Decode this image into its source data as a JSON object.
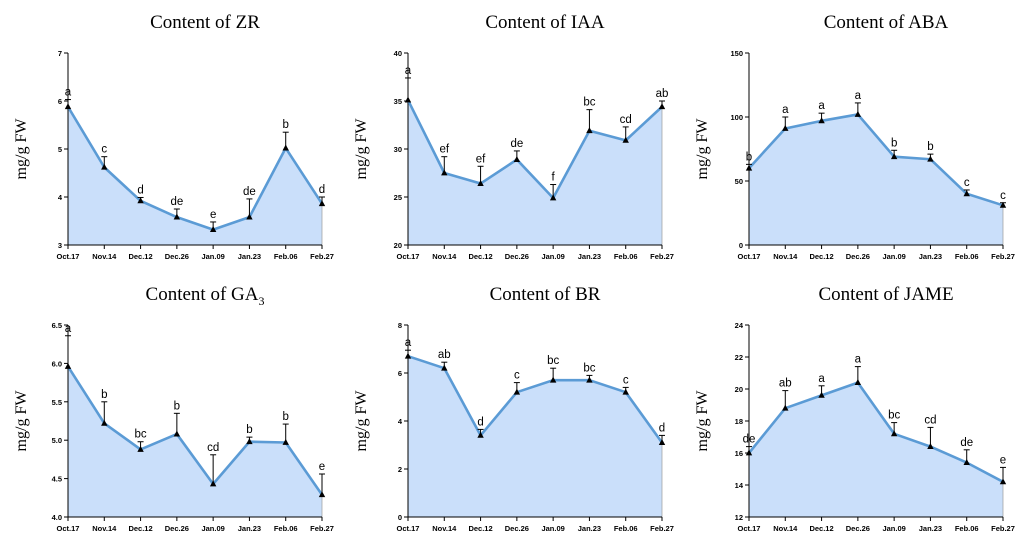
{
  "chart_data": [
    {
      "type": "area",
      "title": "Content of ZR",
      "ylabel": "mg/g FW",
      "categories": [
        "Oct.17",
        "Nov.14",
        "Dec.12",
        "Dec.26",
        "Jan.09",
        "Jan.23",
        "Feb.06",
        "Feb.27"
      ],
      "ylim": [
        3,
        7
      ],
      "yticks": [
        3,
        4,
        5,
        6,
        7
      ],
      "values": [
        5.88,
        4.62,
        3.92,
        3.58,
        3.32,
        3.58,
        5.02,
        3.86
      ],
      "errors": [
        0.15,
        0.22,
        0.07,
        0.17,
        0.16,
        0.38,
        0.33,
        0.14
      ],
      "letters": [
        "a",
        "c",
        "d",
        "de",
        "e",
        "de",
        "b",
        "d"
      ],
      "color": "#5b9bd5",
      "fill": "#cadffa"
    },
    {
      "type": "area",
      "title": "Content of IAA",
      "ylabel": "mg/g FW",
      "categories": [
        "Oct.17",
        "Nov.14",
        "Dec.12",
        "Dec.26",
        "Jan.09",
        "Jan.23",
        "Feb.06",
        "Feb.27"
      ],
      "ylim": [
        20,
        40
      ],
      "yticks": [
        20,
        25,
        30,
        35,
        40
      ],
      "values": [
        35.1,
        27.5,
        26.4,
        28.9,
        24.9,
        31.9,
        30.9,
        34.4
      ],
      "errors": [
        2.3,
        1.7,
        1.8,
        0.9,
        1.4,
        2.2,
        1.4,
        0.6
      ],
      "letters": [
        "a",
        "ef",
        "ef",
        "de",
        "f",
        "bc",
        "cd",
        "ab"
      ],
      "color": "#5b9bd5",
      "fill": "#cadffa"
    },
    {
      "type": "area",
      "title": "Content of ABA",
      "ylabel": "mg/g FW",
      "categories": [
        "Oct.17",
        "Nov.14",
        "Dec.12",
        "Dec.26",
        "Jan.09",
        "Jan.23",
        "Feb.06",
        "Feb.27"
      ],
      "ylim": [
        0,
        150
      ],
      "yticks": [
        0,
        50,
        100,
        150
      ],
      "values": [
        60,
        91,
        97,
        102,
        69,
        67,
        40,
        31
      ],
      "errors": [
        3,
        9,
        6,
        9,
        5,
        4,
        3,
        2
      ],
      "letters": [
        "b",
        "a",
        "a",
        "a",
        "b",
        "b",
        "c",
        "c"
      ],
      "color": "#5b9bd5",
      "fill": "#cadffa"
    },
    {
      "type": "area",
      "title_main": "Content of GA",
      "title_sub": "3",
      "ylabel": "mg/g FW",
      "categories": [
        "Oct.17",
        "Nov.14",
        "Dec.12",
        "Dec.26",
        "Jan.09",
        "Jan.23",
        "Feb.06",
        "Feb.27"
      ],
      "ylim": [
        4.0,
        6.5
      ],
      "yticks": [
        "4.0",
        "4.5",
        "5.0",
        "5.5",
        "6.0",
        "6.5"
      ],
      "values": [
        5.96,
        5.22,
        4.88,
        5.08,
        4.43,
        4.98,
        4.97,
        4.29
      ],
      "errors": [
        0.4,
        0.28,
        0.1,
        0.27,
        0.38,
        0.06,
        0.24,
        0.27
      ],
      "letters": [
        "a",
        "b",
        "bc",
        "b",
        "cd",
        "b",
        "b",
        "e"
      ],
      "color": "#5b9bd5",
      "fill": "#cadffa"
    },
    {
      "type": "area",
      "title": "Content of BR",
      "ylabel": "mg/g FW",
      "categories": [
        "Oct.17",
        "Nov.14",
        "Dec.12",
        "Dec.26",
        "Jan.09",
        "Jan.23",
        "Feb.06",
        "Feb.27"
      ],
      "ylim": [
        0,
        8
      ],
      "yticks": [
        0,
        2,
        4,
        6,
        8
      ],
      "values": [
        6.7,
        6.2,
        3.4,
        5.2,
        5.7,
        5.7,
        5.2,
        3.1
      ],
      "errors": [
        0.25,
        0.25,
        0.25,
        0.4,
        0.5,
        0.2,
        0.2,
        0.3
      ],
      "letters": [
        "a",
        "ab",
        "d",
        "c",
        "bc",
        "bc",
        "c",
        "d"
      ],
      "color": "#5b9bd5",
      "fill": "#cadffa"
    },
    {
      "type": "area",
      "title": "Content of JAME",
      "ylabel": "mg/g FW",
      "categories": [
        "Oct.17",
        "Nov.14",
        "Dec.12",
        "Dec.26",
        "Jan.09",
        "Jan.23",
        "Feb.06",
        "Feb.27"
      ],
      "ylim": [
        12,
        24
      ],
      "yticks": [
        12,
        14,
        16,
        18,
        20,
        22,
        24
      ],
      "values": [
        16.0,
        18.8,
        19.6,
        20.4,
        17.2,
        16.4,
        15.4,
        14.2
      ],
      "errors": [
        0.4,
        1.1,
        0.6,
        1.0,
        0.7,
        1.2,
        0.8,
        0.9
      ],
      "letters": [
        "de",
        "ab",
        "a",
        "a",
        "bc",
        "cd",
        "de",
        "e"
      ],
      "color": "#5b9bd5",
      "fill": "#cadffa"
    }
  ]
}
